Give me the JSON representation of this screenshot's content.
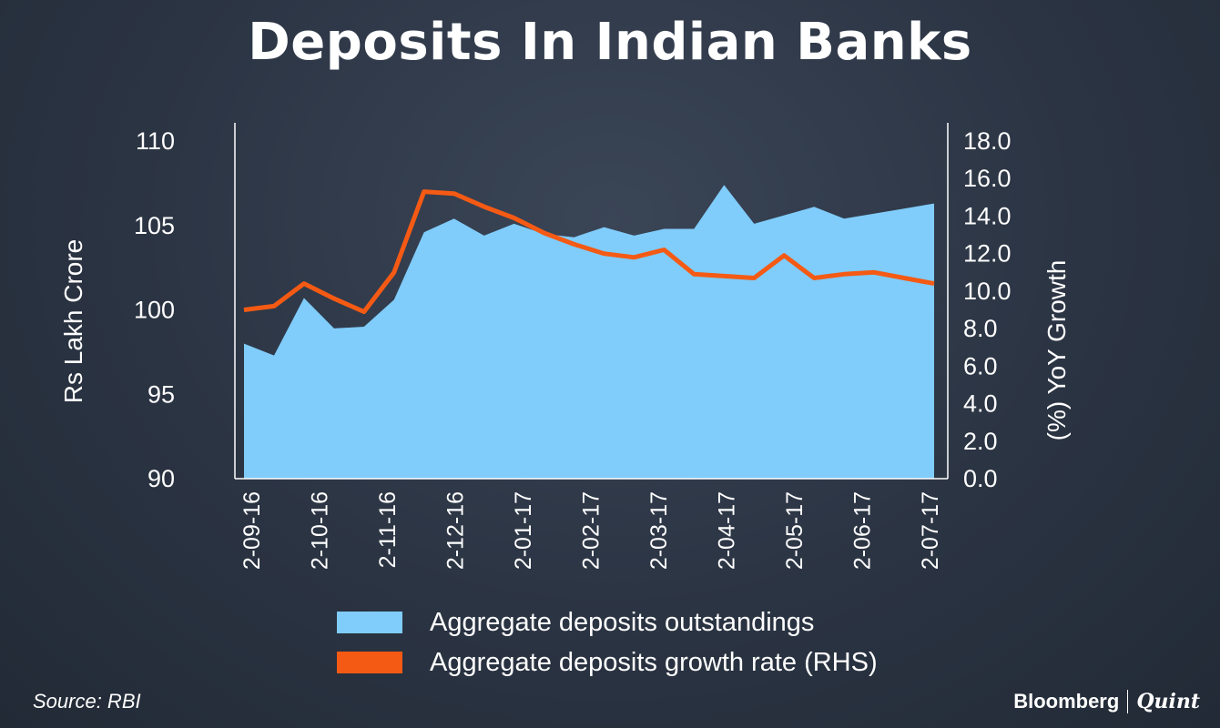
{
  "chart_data": {
    "type": "area",
    "title": "Deposits In Indian Banks",
    "ylabel": "Rs Lakh Crore",
    "ylabel_right": "(%) YoY Growth",
    "ylim": [
      90,
      110
    ],
    "ylim_right": [
      0,
      18
    ],
    "yticks_left": [
      "110",
      "105",
      "100",
      "95",
      "90"
    ],
    "yticks_right": [
      "18.0",
      "16.0",
      "14.0",
      "12.0",
      "10.0",
      "8.0",
      "6.0",
      "4.0",
      "2.0",
      "0.0"
    ],
    "xticks": [
      "2-09-16",
      "2-10-16",
      "2-11-16",
      "2-12-16",
      "2-01-17",
      "2-02-17",
      "2-03-17",
      "2-04-17",
      "2-05-17",
      "2-06-17",
      "2-07-17"
    ],
    "legend_position": "bottom",
    "grid": false,
    "series": [
      {
        "name": "Aggregate deposits outstandings",
        "type": "area",
        "axis": "left",
        "color": "#80ccfa",
        "values": [
          98.0,
          97.3,
          100.7,
          98.9,
          99.0,
          100.6,
          104.6,
          105.4,
          104.4,
          105.1,
          104.5,
          104.3,
          104.9,
          104.4,
          104.8,
          104.8,
          107.4,
          105.1,
          105.6,
          106.1,
          105.4,
          105.7,
          106.0,
          106.3
        ]
      },
      {
        "name": "Aggregate deposits growth rate (RHS)",
        "type": "line",
        "axis": "right",
        "color": "#f55a14",
        "values": [
          9.0,
          9.2,
          10.4,
          9.6,
          8.9,
          11.0,
          15.3,
          15.2,
          14.5,
          13.9,
          13.1,
          12.5,
          12.0,
          11.8,
          12.2,
          10.9,
          10.8,
          10.7,
          11.9,
          10.7,
          10.9,
          11.0,
          10.7,
          10.4
        ]
      }
    ]
  },
  "footer": {
    "source": "Source: RBI",
    "brand_left": "Bloomberg",
    "brand_right": "Quint"
  }
}
